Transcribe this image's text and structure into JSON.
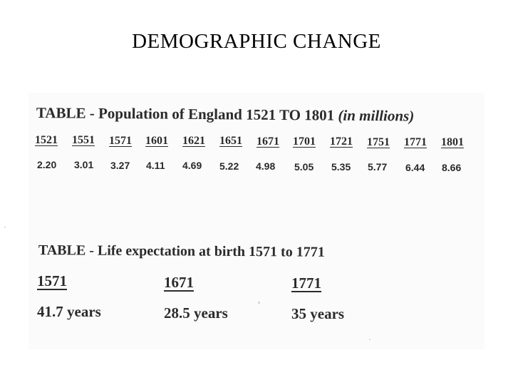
{
  "slide": {
    "title": "DEMOGRAPHIC CHANGE"
  },
  "population_table": {
    "title": "TABLE - Population of England 1521 TO 1801",
    "title_note": "(in millions)",
    "years": [
      "1521",
      "1551",
      "1571",
      "1601",
      "1621",
      "1651",
      "1671",
      "1701",
      "1721",
      "1751",
      "1771",
      "1801"
    ],
    "values": [
      "2.20",
      "3.01",
      "3.27",
      "4.11",
      "4.69",
      "5.22",
      "4.98",
      "5.05",
      "5.35",
      "5.77",
      "6.44",
      "8.66"
    ]
  },
  "life_table": {
    "title": "TABLE - Life expectation at birth 1571 to 1771",
    "columns": [
      {
        "year": "1571",
        "value": "41.7 years"
      },
      {
        "year": "1671",
        "value": "28.5 years"
      },
      {
        "year": "1771",
        "value": "35 years"
      }
    ]
  }
}
